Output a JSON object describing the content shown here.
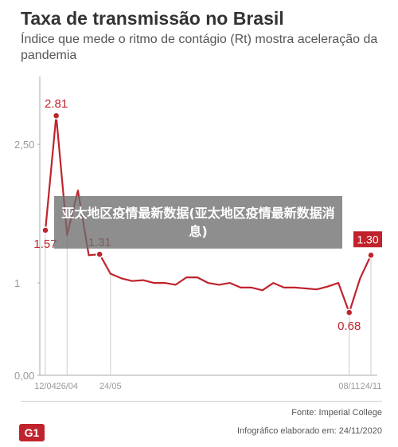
{
  "header": {
    "title": "Taxa de transmissão no Brasil",
    "subtitle": "Índice que mede o ritmo de contágio (Rt) mostra aceleração da pandemia"
  },
  "overlay": {
    "text": "亚太地区疫情最新数据(亚太地区疫情最新数据消息)"
  },
  "footer": {
    "source": "Fonte: Imperial College",
    "credit": "Infográfico elaborado em: 24/11/2020",
    "logo_text": "G1"
  },
  "colors": {
    "line": "#c0232c",
    "axis": "#aaaaaa",
    "text": "#333333",
    "label_box": "#c0232c"
  },
  "chart_data": {
    "type": "line",
    "title": "Taxa de transmissão no Brasil",
    "ylim": [
      0,
      3.2
    ],
    "yticks": [
      {
        "value": 0,
        "label": "0,00"
      },
      {
        "value": 1,
        "label": "1"
      },
      {
        "value": 2.5,
        "label": "2,50"
      }
    ],
    "x_tick_labels": [
      {
        "index": 0,
        "label": "12/04"
      },
      {
        "index": 2,
        "label": "26/04"
      },
      {
        "index": 6,
        "label": "24/05"
      },
      {
        "index": 28,
        "label": "08/11"
      },
      {
        "index": 30,
        "label": "24/11"
      }
    ],
    "series": [
      {
        "values": [
          1.57,
          2.81,
          1.52,
          2.0,
          1.3,
          1.31,
          1.1,
          1.05,
          1.02,
          1.03,
          1.0,
          1.0,
          0.98,
          1.06,
          1.06,
          1.0,
          0.98,
          1.0,
          0.95,
          0.95,
          0.92,
          1.0,
          0.95,
          0.95,
          0.94,
          0.93,
          0.96,
          1.0,
          0.68,
          1.05,
          1.3
        ]
      }
    ],
    "annotations": [
      {
        "index": 0,
        "label": "1.57",
        "position": "below"
      },
      {
        "index": 1,
        "label": "2.81",
        "position": "above"
      },
      {
        "index": 5,
        "label": "1.31",
        "position": "above"
      },
      {
        "index": 28,
        "label": "0.68",
        "position": "below"
      },
      {
        "index": 30,
        "label": "1.30",
        "position": "above-box"
      }
    ],
    "grid": false
  }
}
